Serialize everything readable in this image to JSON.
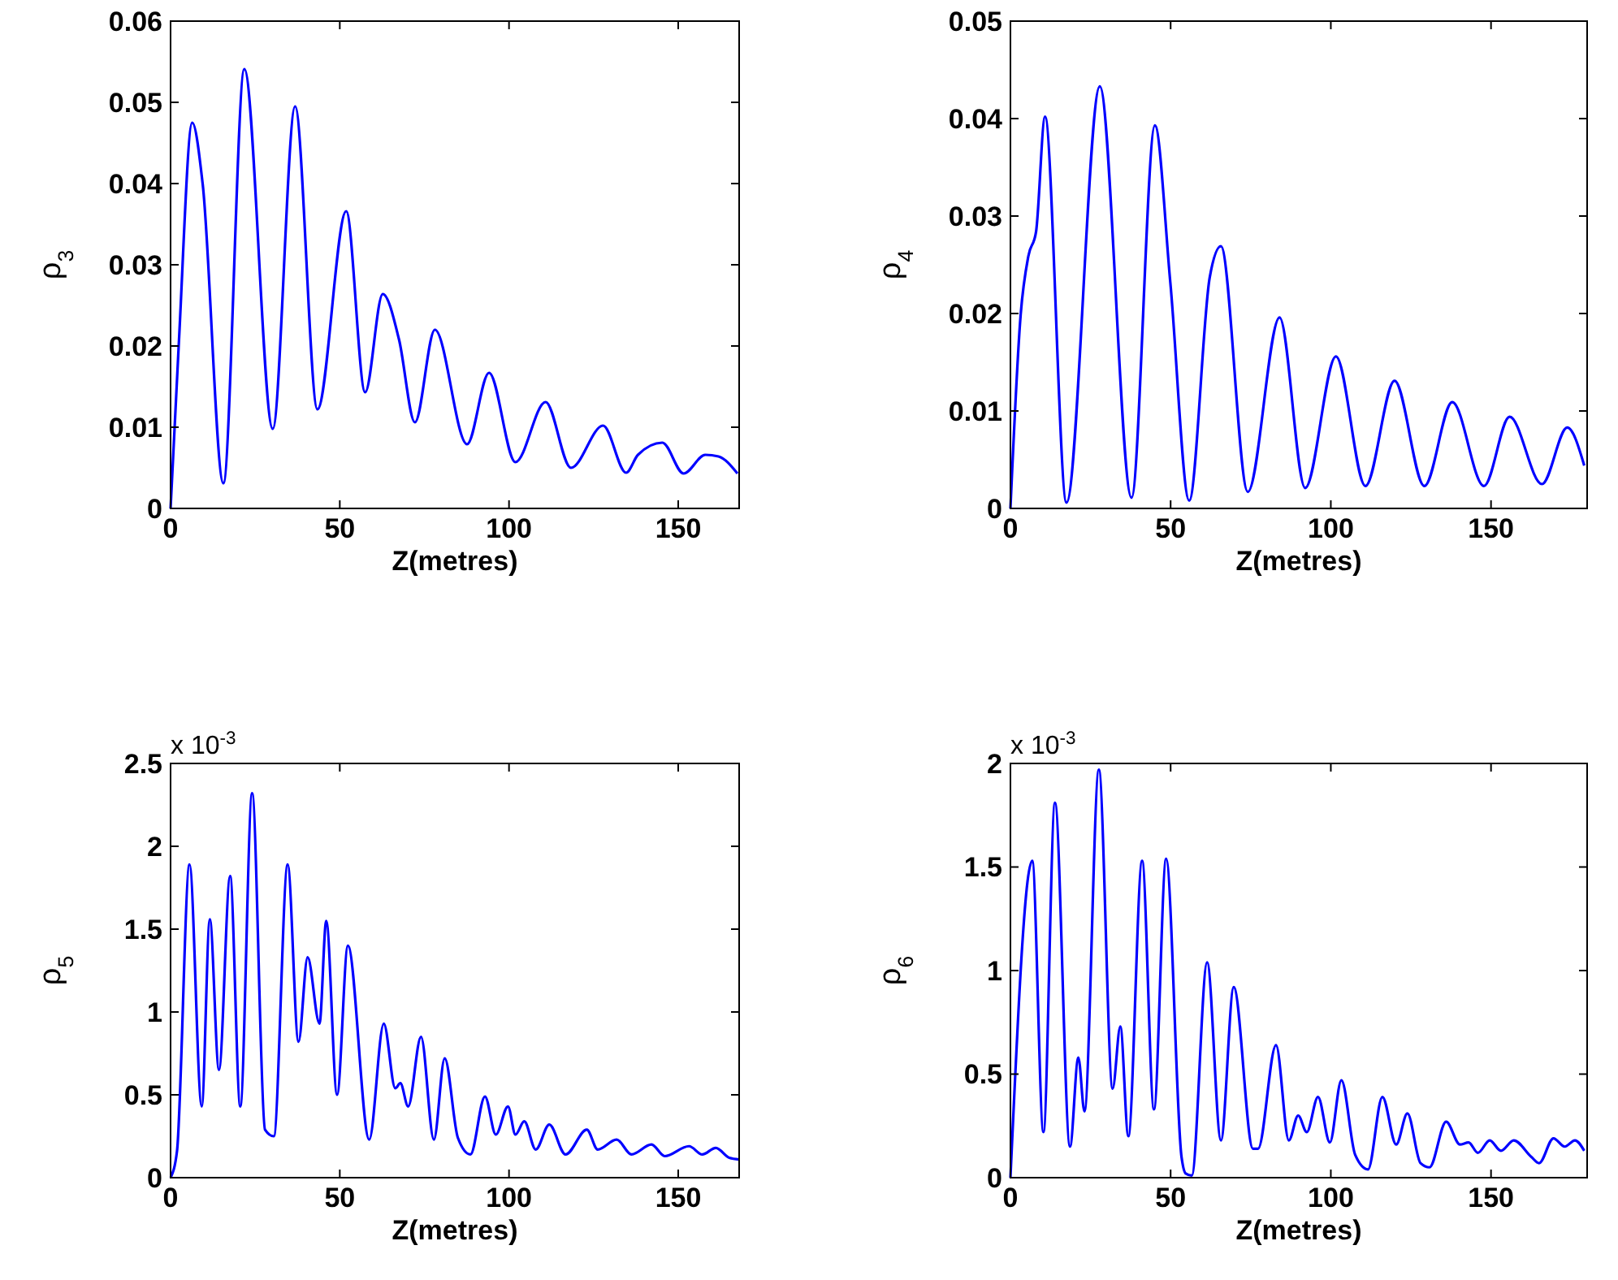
{
  "chart_data": [
    {
      "type": "line",
      "xlabel": "Z(metres)",
      "ylabel": "ρ$_{3}$",
      "xlim": [
        0,
        168
      ],
      "xticks": [
        0,
        50,
        100,
        150
      ],
      "ylim": [
        0,
        0.06
      ],
      "yticks": [
        0,
        0.01,
        0.02,
        0.03,
        0.04,
        0.05,
        0.06
      ],
      "grid": false,
      "series": [
        {
          "color": "#0000ff",
          "x": [
            0,
            2.4,
            6.4,
            9.5,
            15.6,
            21.8,
            30.2,
            36.8,
            43.4,
            51.9,
            57.5,
            62.7,
            67.5,
            72.2,
            78.1,
            87.6,
            94.1,
            101.9,
            110.8,
            118.3,
            127.8,
            134.6,
            138.1,
            145.3,
            151.6,
            158,
            161.9,
            167.5
          ],
          "values": [
            0,
            0.02,
            0.0475,
            0.0399,
            0.0031,
            0.0541,
            0.0098,
            0.0495,
            0.0122,
            0.0366,
            0.0143,
            0.0264,
            0.0208,
            0.0106,
            0.022,
            0.0079,
            0.0167,
            0.0057,
            0.0131,
            0.005,
            0.0102,
            0.0044,
            0.0066,
            0.0081,
            0.0043,
            0.0066,
            0.0064,
            0.0043
          ]
        }
      ]
    },
    {
      "type": "line",
      "xlabel": "Z(metres)",
      "ylabel": "ρ$_{4}$",
      "xlim": [
        0,
        180
      ],
      "xticks": [
        0,
        50,
        100,
        150
      ],
      "ylim": [
        0,
        0.05
      ],
      "yticks": [
        0,
        0.01,
        0.02,
        0.03,
        0.04,
        0.05
      ],
      "grid": false,
      "series": [
        {
          "color": "#0000ff",
          "x": [
            0,
            3.2,
            5.6,
            8,
            10.8,
            17.5,
            27.9,
            37.8,
            45.1,
            49.9,
            55.8,
            62.2,
            65.7,
            74.1,
            84,
            92,
            101.6,
            110.8,
            119.9,
            129.2,
            137.9,
            147.8,
            155.8,
            165.9,
            173.8,
            179.1
          ],
          "values": [
            0,
            0.0199,
            0.0259,
            0.0284,
            0.0402,
            0.0006,
            0.0433,
            0.0011,
            0.0393,
            0.0232,
            0.0008,
            0.0237,
            0.0269,
            0.0017,
            0.0196,
            0.0021,
            0.0156,
            0.0023,
            0.0131,
            0.0023,
            0.0109,
            0.0023,
            0.0094,
            0.0025,
            0.0083,
            0.0044
          ]
        }
      ]
    },
    {
      "type": "line",
      "xlabel": "Z(metres)",
      "ylabel": "ρ$_{5}$",
      "annotations": [
        "x 10$^{-3}$"
      ],
      "xlim": [
        0,
        168
      ],
      "xticks": [
        0,
        50,
        100,
        150
      ],
      "ylim": [
        0,
        2.5
      ],
      "yticks": [
        0,
        0.5,
        1,
        1.5,
        2,
        2.5
      ],
      "grid": false,
      "series": [
        {
          "color": "#0000ff",
          "x": [
            0,
            1.9,
            5.6,
            9.2,
            11.6,
            14.3,
            17.6,
            20.6,
            24.1,
            27.9,
            30.5,
            34.6,
            37.8,
            40.5,
            44,
            46,
            49.2,
            52.4,
            58.7,
            63,
            66.4,
            67.9,
            70.2,
            74,
            77.8,
            81,
            84.9,
            88.6,
            92.9,
            96.1,
            99.7,
            101.9,
            104.5,
            107.9,
            111.9,
            116.7,
            123,
            126.2,
            131.8,
            136.2,
            142.1,
            146,
            153.2,
            157.1,
            161.1,
            165.1,
            168
          ],
          "values": [
            0,
            0.16,
            1.89,
            0.43,
            1.56,
            0.65,
            1.82,
            0.43,
            2.32,
            0.29,
            0.25,
            1.89,
            0.82,
            1.33,
            0.93,
            1.55,
            0.5,
            1.4,
            0.23,
            0.93,
            0.54,
            0.57,
            0.43,
            0.85,
            0.23,
            0.72,
            0.24,
            0.14,
            0.49,
            0.26,
            0.43,
            0.26,
            0.34,
            0.17,
            0.32,
            0.14,
            0.29,
            0.17,
            0.23,
            0.14,
            0.2,
            0.13,
            0.19,
            0.14,
            0.18,
            0.12,
            0.11
          ]
        }
      ]
    },
    {
      "type": "line",
      "xlabel": "Z(metres)",
      "ylabel": "ρ$_{6}$",
      "annotations": [
        "x 10$^{-3}$"
      ],
      "xlim": [
        0,
        180
      ],
      "xticks": [
        0,
        50,
        100,
        150
      ],
      "ylim": [
        0,
        2
      ],
      "yticks": [
        0,
        0.5,
        1,
        1.5,
        2
      ],
      "grid": false,
      "series": [
        {
          "color": "#0000ff",
          "x": [
            0,
            6.8,
            10.3,
            13.9,
            18.6,
            21.2,
            23.1,
            27.6,
            31.9,
            34.3,
            36.8,
            41.1,
            44.8,
            48.6,
            53.4,
            54.7,
            56.6,
            61.4,
            65.7,
            69.7,
            75.7,
            77.3,
            82.9,
            86.9,
            89.8,
            92.5,
            96,
            99.7,
            103.3,
            107.6,
            111.6,
            116.1,
            120.4,
            123.9,
            128,
            130.8,
            136,
            140.3,
            143,
            145.9,
            149.6,
            153.1,
            157.1,
            162.6,
            165,
            169.5,
            173,
            176.2,
            179.1
          ],
          "values": [
            0,
            1.53,
            0.22,
            1.81,
            0.15,
            0.58,
            0.32,
            1.97,
            0.43,
            0.73,
            0.2,
            1.53,
            0.33,
            1.54,
            0.1,
            0.02,
            0.01,
            1.04,
            0.18,
            0.92,
            0.14,
            0.14,
            0.64,
            0.18,
            0.3,
            0.22,
            0.39,
            0.17,
            0.47,
            0.11,
            0.04,
            0.39,
            0.16,
            0.31,
            0.07,
            0.05,
            0.27,
            0.16,
            0.17,
            0.12,
            0.18,
            0.13,
            0.18,
            0.1,
            0.07,
            0.19,
            0.15,
            0.18,
            0.13
          ]
        }
      ]
    }
  ]
}
